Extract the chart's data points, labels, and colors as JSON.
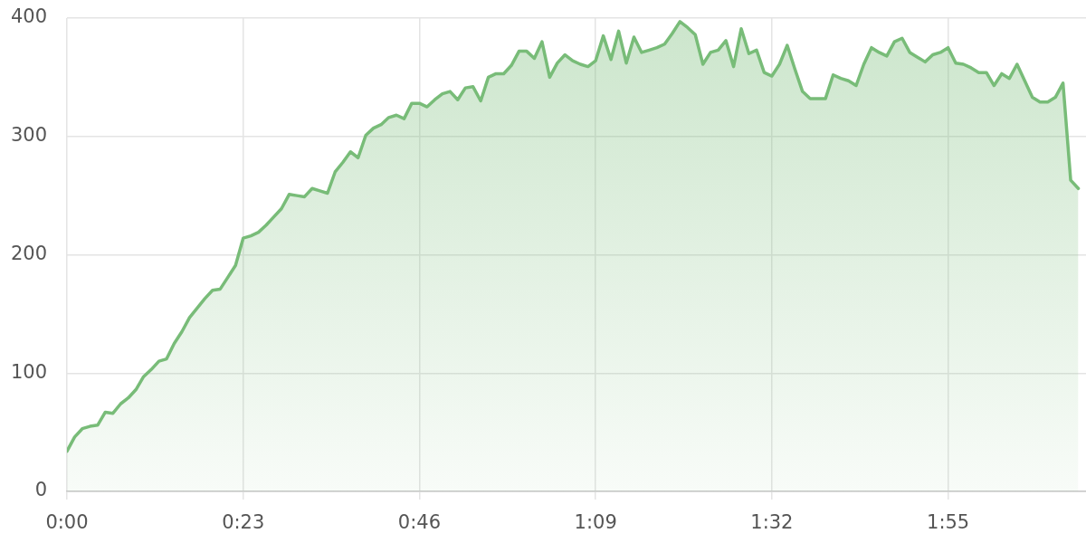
{
  "chart_data": {
    "type": "area",
    "x": [
      0,
      1,
      2,
      3,
      4,
      5,
      6,
      7,
      8,
      9,
      10,
      11,
      12,
      13,
      14,
      15,
      16,
      17,
      18,
      19,
      20,
      21,
      22,
      23,
      24,
      25,
      26,
      27,
      28,
      29,
      30,
      31,
      32,
      33,
      34,
      35,
      36,
      37,
      38,
      39,
      40,
      41,
      42,
      43,
      44,
      45,
      46,
      47,
      48,
      49,
      50,
      51,
      52,
      53,
      54,
      55,
      56,
      57,
      58,
      59,
      60,
      61,
      62,
      63,
      64,
      65,
      66,
      67,
      68,
      69,
      70,
      71,
      72,
      73,
      74,
      75,
      76,
      77,
      78,
      79,
      80,
      81,
      82,
      83,
      84,
      85,
      86,
      87,
      88,
      89,
      90,
      91,
      92,
      93,
      94,
      95,
      96,
      97,
      98,
      99,
      100,
      101,
      102,
      103,
      104,
      105,
      106,
      107,
      108,
      109,
      110,
      111,
      112,
      113,
      114,
      115,
      116,
      117,
      118,
      119,
      120,
      121,
      122,
      123,
      124,
      125,
      126,
      127,
      128,
      129,
      130,
      131,
      132
    ],
    "values": [
      34,
      46,
      53,
      55,
      56,
      67,
      66,
      74,
      79,
      86,
      97,
      103,
      110,
      112,
      125,
      135,
      147,
      155,
      163,
      170,
      171,
      181,
      191,
      214,
      216,
      219,
      225,
      232,
      239,
      251,
      250,
      249,
      256,
      254,
      252,
      270,
      278,
      287,
      282,
      301,
      307,
      310,
      316,
      318,
      315,
      328,
      328,
      325,
      331,
      336,
      338,
      331,
      341,
      342,
      330,
      350,
      353,
      353,
      360,
      372,
      372,
      366,
      380,
      350,
      362,
      369,
      364,
      361,
      359,
      364,
      385,
      365,
      389,
      362,
      384,
      371,
      373,
      375,
      378,
      387,
      397,
      392,
      386,
      361,
      371,
      373,
      381,
      359,
      391,
      370,
      373,
      354,
      351,
      361,
      377,
      357,
      338,
      332,
      332,
      332,
      352,
      349,
      347,
      343,
      361,
      375,
      371,
      368,
      380,
      383,
      371,
      367,
      363,
      369,
      371,
      375,
      362,
      361,
      358,
      354,
      354,
      343,
      353,
      349,
      361,
      347,
      333,
      329,
      329,
      333,
      345,
      263,
      256
    ],
    "color": "#78bc78",
    "xlim": [
      0,
      133
    ],
    "xticks": [
      {
        "value": 0,
        "label": "0:00"
      },
      {
        "value": 23,
        "label": "0:23"
      },
      {
        "value": 46,
        "label": "0:46"
      },
      {
        "value": 69,
        "label": "1:09"
      },
      {
        "value": 92,
        "label": "1:32"
      },
      {
        "value": 115,
        "label": "1:55"
      }
    ],
    "ylim": [
      0,
      400
    ],
    "yticks": [
      0,
      100,
      200,
      300,
      400
    ],
    "grid": true
  }
}
